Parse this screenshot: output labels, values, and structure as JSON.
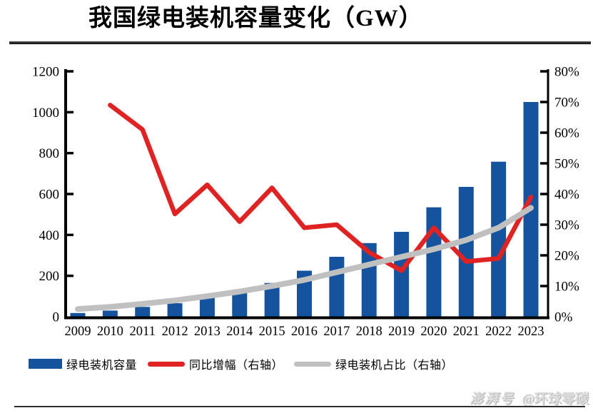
{
  "header": {
    "title": "我国绿电装机容量变化（GW）"
  },
  "chart_data": {
    "type": "bar",
    "title": "我国绿电装机容量变化（GW）",
    "categories": [
      "2009",
      "2010",
      "2011",
      "2012",
      "2013",
      "2014",
      "2015",
      "2016",
      "2017",
      "2018",
      "2019",
      "2020",
      "2021",
      "2022",
      "2023"
    ],
    "series": [
      {
        "name": "绿电装机容量",
        "type": "bar",
        "axis": "left",
        "unit": "GW",
        "color": "#15539E",
        "values": [
          18,
          30,
          48,
          66,
          95,
          124,
          165,
          225,
          293,
          360,
          415,
          535,
          635,
          758,
          1050
        ]
      },
      {
        "name": "同比增幅（右轴）",
        "type": "line",
        "axis": "right",
        "unit": "%",
        "color": "#E02222",
        "values": [
          null,
          69,
          61,
          33.5,
          43,
          31,
          42,
          29,
          30,
          21,
          15,
          29,
          18,
          19,
          39
        ]
      },
      {
        "name": "绿电装机占比（右轴）",
        "type": "line",
        "axis": "right",
        "unit": "%",
        "color": "#C0C0C0",
        "values": [
          2.5,
          3.2,
          4.2,
          5.3,
          6.7,
          8.2,
          10,
          12,
          14.5,
          17,
          19.5,
          22,
          25,
          29,
          35.5
        ]
      }
    ],
    "left_axis": {
      "min": 0,
      "max": 1200,
      "step": 200,
      "tick_labels": [
        "0",
        "200",
        "400",
        "600",
        "800",
        "1000",
        "1200"
      ]
    },
    "right_axis": {
      "min": 0,
      "max": 80,
      "step": 10,
      "tick_labels": [
        "0%",
        "10%",
        "20%",
        "30%",
        "40%",
        "50%",
        "60%",
        "70%",
        "80%"
      ]
    },
    "grid": false,
    "legend_position": "bottom"
  },
  "legend": {
    "items": [
      {
        "label": "绿电装机容量",
        "color": "#15539E",
        "shape": "rect"
      },
      {
        "label": "同比增幅（右轴）",
        "color": "#E02222",
        "shape": "line"
      },
      {
        "label": "绿电装机占比（右轴）",
        "color": "#C0C0C0",
        "shape": "line"
      }
    ]
  },
  "footer": {
    "watermark_logo": "澎湃号",
    "watermark_handle": "@环球零碳"
  }
}
